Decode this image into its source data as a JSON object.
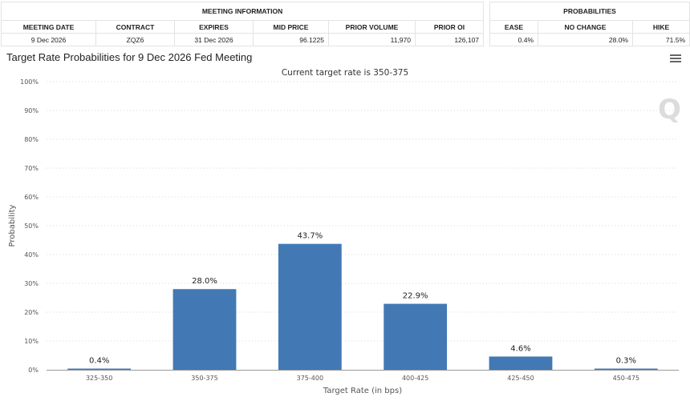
{
  "meeting_info": {
    "title": "MEETING INFORMATION",
    "headers": [
      "MEETING DATE",
      "CONTRACT",
      "EXPIRES",
      "MID PRICE",
      "PRIOR VOLUME",
      "PRIOR OI"
    ],
    "values": [
      "9 Dec 2026",
      "ZQZ6",
      "31 Dec 2026",
      "96.1225",
      "11,970",
      "126,107"
    ]
  },
  "probabilities": {
    "title": "PROBABILITIES",
    "headers": [
      "EASE",
      "NO CHANGE",
      "HIKE"
    ],
    "values": [
      "0.4%",
      "28.0%",
      "71.5%"
    ]
  },
  "menu_icon": "hamburger-menu-icon",
  "watermark": "Q",
  "colors": {
    "bar": "#4279b5",
    "grid": "#d8d8d8",
    "axis": "#999999"
  },
  "chart_data": {
    "type": "bar",
    "title": "Target Rate Probabilities for 9 Dec 2026 Fed Meeting",
    "subtitle": "Current target rate is 350-375",
    "xlabel": "Target Rate (in bps)",
    "ylabel": "Probability",
    "categories": [
      "325-350",
      "350-375",
      "375-400",
      "400-425",
      "425-450",
      "450-475"
    ],
    "values": [
      0.4,
      28.0,
      43.7,
      22.9,
      4.6,
      0.3
    ],
    "data_labels": [
      "0.4%",
      "28.0%",
      "43.7%",
      "22.9%",
      "4.6%",
      "0.3%"
    ],
    "ylim": [
      0,
      100
    ],
    "yticks": [
      "0%",
      "10%",
      "20%",
      "30%",
      "40%",
      "50%",
      "60%",
      "70%",
      "80%",
      "90%",
      "100%"
    ],
    "grid": true,
    "legend": "none"
  }
}
